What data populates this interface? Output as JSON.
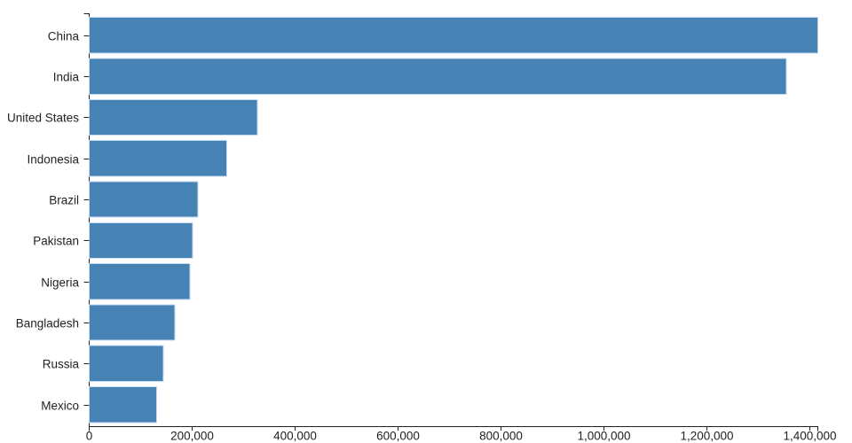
{
  "page": {
    "background": "#ffffff"
  },
  "chart_data": {
    "type": "bar",
    "orientation": "horizontal",
    "title": "",
    "xlabel": "",
    "ylabel": "",
    "categories": [
      "China",
      "India",
      "United States",
      "Indonesia",
      "Brazil",
      "Pakistan",
      "Nigeria",
      "Bangladesh",
      "Russia",
      "Mexico"
    ],
    "values": [
      1415046,
      1354052,
      326767,
      266795,
      210868,
      200814,
      195875,
      166368,
      143965,
      130759
    ],
    "xlim": [
      0,
      1415046
    ],
    "x_ticks": [
      0,
      200000,
      400000,
      600000,
      800000,
      1000000,
      1200000,
      1400000
    ],
    "x_tick_labels": [
      "0",
      "200,000",
      "400,000",
      "600,000",
      "800,000",
      "1,000,000",
      "1,200,000",
      "1,400,000"
    ],
    "grid": false,
    "legend": null,
    "colors": {
      "bar_fill": "#4682b4",
      "bar_stroke": "#c6dbef",
      "axis_line": "#222222",
      "tick_text": "#222222",
      "background": "#ffffff"
    }
  }
}
